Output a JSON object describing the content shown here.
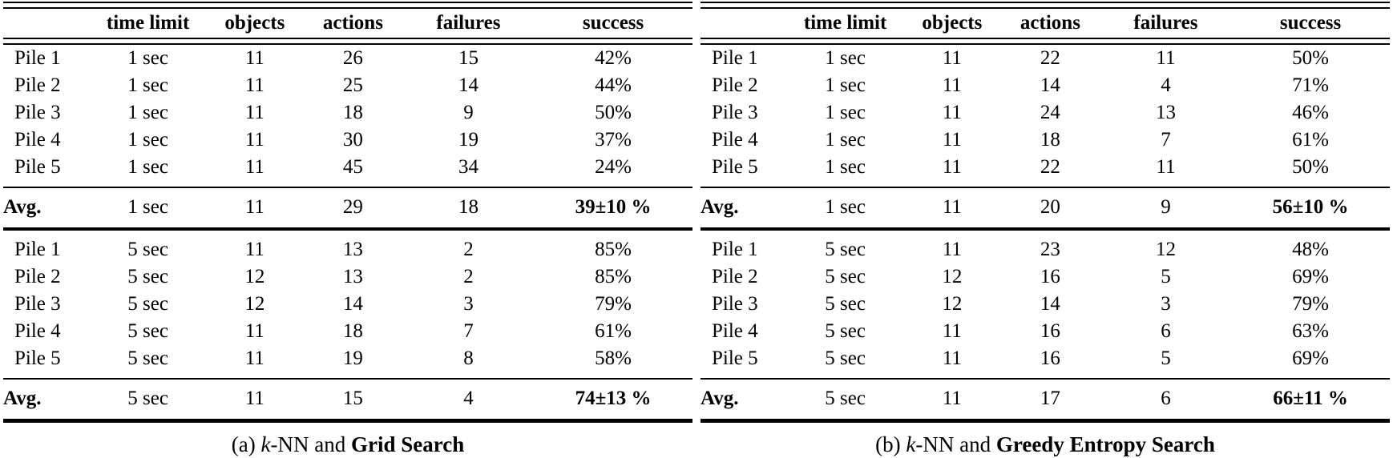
{
  "colors": {
    "text": "#000000",
    "background": "#ffffff",
    "rule": "#000000"
  },
  "column_keys": [
    "label",
    "time_limit",
    "objects",
    "actions",
    "failures",
    "success"
  ],
  "tables": [
    {
      "caption": {
        "prefix": "(a)",
        "algorithm_italic": "k",
        "algorithm_rest": "-NN and",
        "method": "Grid Search"
      },
      "headers": [
        "",
        "time limit",
        "objects",
        "actions",
        "failures",
        "success"
      ],
      "blocks": [
        {
          "rows": [
            {
              "label": "Pile 1",
              "time_limit": "1 sec",
              "objects": "11",
              "actions": "26",
              "failures": "15",
              "success": "42%"
            },
            {
              "label": "Pile 2",
              "time_limit": "1 sec",
              "objects": "11",
              "actions": "25",
              "failures": "14",
              "success": "44%"
            },
            {
              "label": "Pile 3",
              "time_limit": "1 sec",
              "objects": "11",
              "actions": "18",
              "failures": "9",
              "success": "50%"
            },
            {
              "label": "Pile 4",
              "time_limit": "1 sec",
              "objects": "11",
              "actions": "30",
              "failures": "19",
              "success": "37%"
            },
            {
              "label": "Pile 5",
              "time_limit": "1 sec",
              "objects": "11",
              "actions": "45",
              "failures": "34",
              "success": "24%"
            }
          ],
          "avg": {
            "label": "Avg.",
            "time_limit": "1 sec",
            "objects": "11",
            "actions": "29",
            "failures": "18",
            "success": "39±10 %"
          }
        },
        {
          "rows": [
            {
              "label": "Pile 1",
              "time_limit": "5 sec",
              "objects": "11",
              "actions": "13",
              "failures": "2",
              "success": "85%"
            },
            {
              "label": "Pile 2",
              "time_limit": "5 sec",
              "objects": "12",
              "actions": "13",
              "failures": "2",
              "success": "85%"
            },
            {
              "label": "Pile 3",
              "time_limit": "5 sec",
              "objects": "12",
              "actions": "14",
              "failures": "3",
              "success": "79%"
            },
            {
              "label": "Pile 4",
              "time_limit": "5 sec",
              "objects": "11",
              "actions": "18",
              "failures": "7",
              "success": "61%"
            },
            {
              "label": "Pile 5",
              "time_limit": "5 sec",
              "objects": "11",
              "actions": "19",
              "failures": "8",
              "success": "58%"
            }
          ],
          "avg": {
            "label": "Avg.",
            "time_limit": "5 sec",
            "objects": "11",
            "actions": "15",
            "failures": "4",
            "success": "74±13 %"
          }
        }
      ]
    },
    {
      "caption": {
        "prefix": "(b)",
        "algorithm_italic": "k",
        "algorithm_rest": "-NN and",
        "method": "Greedy Entropy Search"
      },
      "headers": [
        "",
        "time limit",
        "objects",
        "actions",
        "failures",
        "success"
      ],
      "blocks": [
        {
          "rows": [
            {
              "label": "Pile 1",
              "time_limit": "1 sec",
              "objects": "11",
              "actions": "22",
              "failures": "11",
              "success": "50%"
            },
            {
              "label": "Pile 2",
              "time_limit": "1 sec",
              "objects": "11",
              "actions": "14",
              "failures": "4",
              "success": "71%"
            },
            {
              "label": "Pile 3",
              "time_limit": "1 sec",
              "objects": "11",
              "actions": "24",
              "failures": "13",
              "success": "46%"
            },
            {
              "label": "Pile 4",
              "time_limit": "1 sec",
              "objects": "11",
              "actions": "18",
              "failures": "7",
              "success": "61%"
            },
            {
              "label": "Pile 5",
              "time_limit": "1 sec",
              "objects": "11",
              "actions": "22",
              "failures": "11",
              "success": "50%"
            }
          ],
          "avg": {
            "label": "Avg.",
            "time_limit": "1 sec",
            "objects": "11",
            "actions": "20",
            "failures": "9",
            "success": "56±10 %"
          }
        },
        {
          "rows": [
            {
              "label": "Pile 1",
              "time_limit": "5 sec",
              "objects": "11",
              "actions": "23",
              "failures": "12",
              "success": "48%"
            },
            {
              "label": "Pile 2",
              "time_limit": "5 sec",
              "objects": "12",
              "actions": "16",
              "failures": "5",
              "success": "69%"
            },
            {
              "label": "Pile 3",
              "time_limit": "5 sec",
              "objects": "12",
              "actions": "14",
              "failures": "3",
              "success": "79%"
            },
            {
              "label": "Pile 4",
              "time_limit": "5 sec",
              "objects": "11",
              "actions": "16",
              "failures": "6",
              "success": "63%"
            },
            {
              "label": "Pile 5",
              "time_limit": "5 sec",
              "objects": "11",
              "actions": "16",
              "failures": "5",
              "success": "69%"
            }
          ],
          "avg": {
            "label": "Avg.",
            "time_limit": "5 sec",
            "objects": "11",
            "actions": "17",
            "failures": "6",
            "success": "66±11 %"
          }
        }
      ]
    }
  ]
}
